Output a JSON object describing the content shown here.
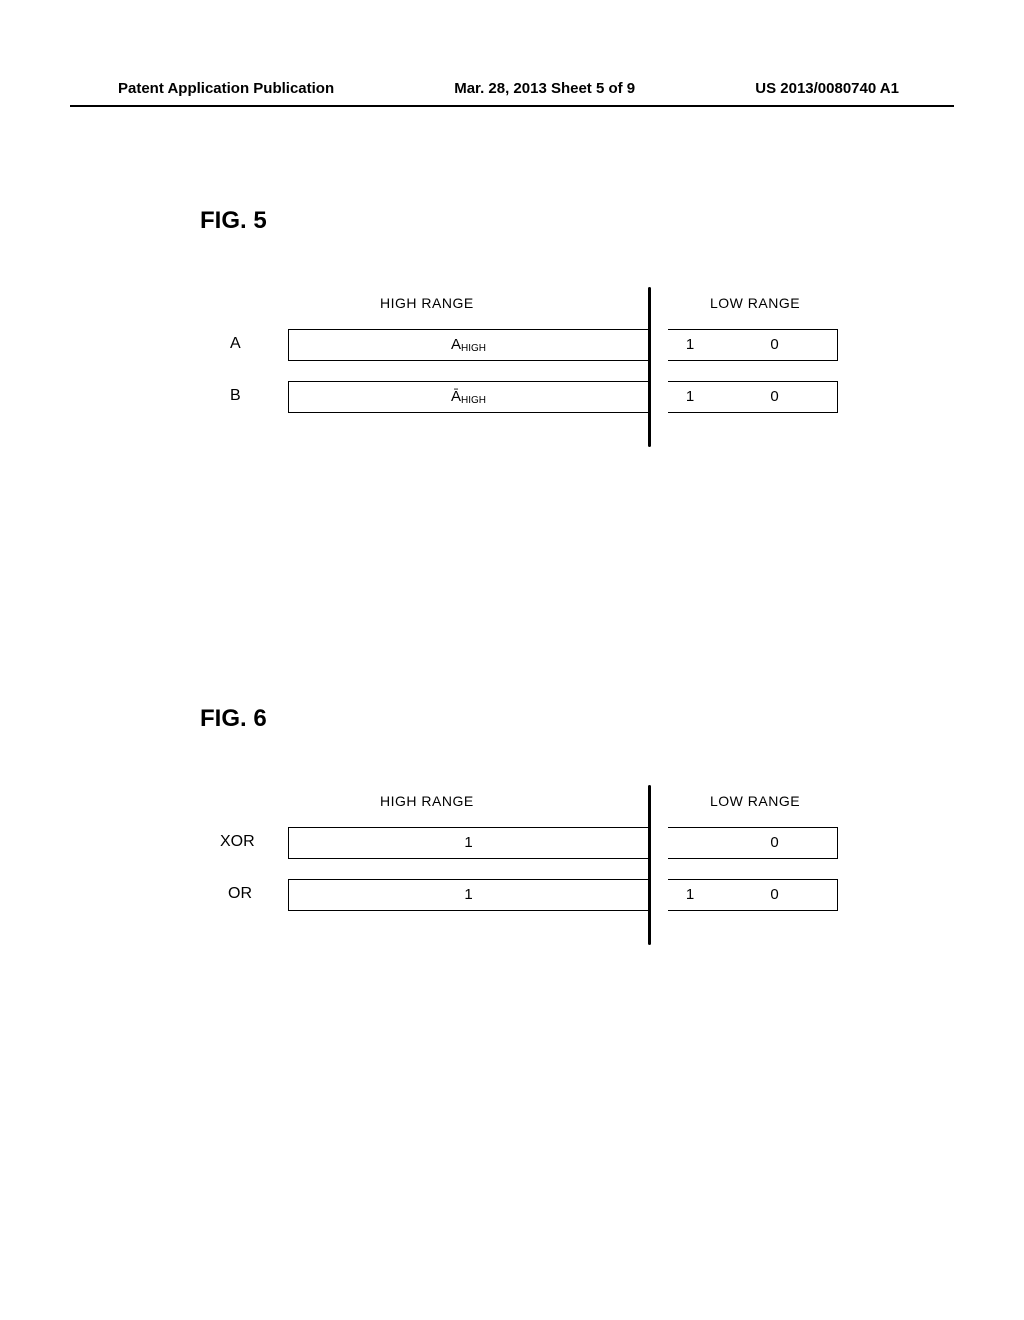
{
  "header": {
    "left": "Patent Application Publication",
    "center": "Mar. 28, 2013  Sheet 5 of 9",
    "right": "US 2013/0080740 A1"
  },
  "fig5": {
    "title": "FIG. 5",
    "high_header": "HIGH RANGE",
    "low_header": "LOW RANGE",
    "rows": [
      {
        "label": "A",
        "high_html": "A<span class=\"sub\">HIGH</span>",
        "low1": "1",
        "low0": "0",
        "show_low1": true
      },
      {
        "label": "B",
        "high_html": "Ā<span class=\"sub\">HIGH</span>",
        "low1": "1",
        "low0": "0",
        "show_low1": true
      }
    ]
  },
  "fig6": {
    "title": "FIG. 6",
    "high_header": "HIGH RANGE",
    "low_header": "LOW RANGE",
    "rows": [
      {
        "label": "XOR",
        "high_html": "1",
        "low1": "",
        "low0": "0",
        "show_low1": false
      },
      {
        "label": "OR",
        "high_html": "1",
        "low1": "1",
        "low0": "0",
        "show_low1": true
      }
    ]
  }
}
